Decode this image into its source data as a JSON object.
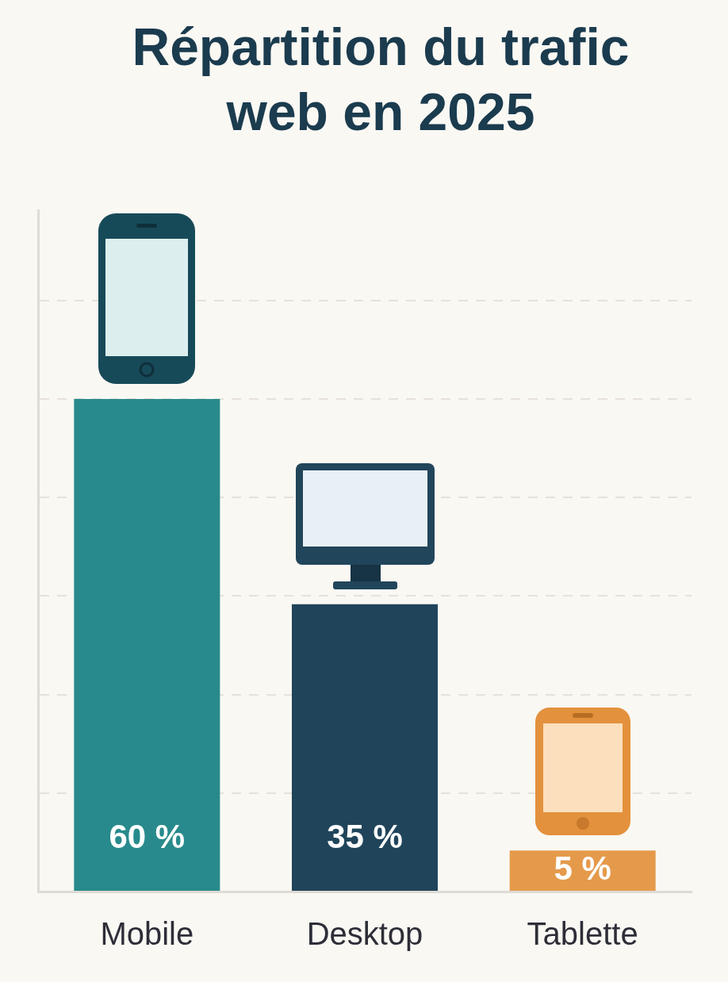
{
  "chart_data": {
    "type": "bar",
    "title": "Répartition du trafic web en 2025",
    "categories": [
      "Mobile",
      "Desktop",
      "Tablette"
    ],
    "values": [
      60,
      35,
      5
    ],
    "colors": [
      "#288a8c",
      "#20445a",
      "#e59a4b"
    ],
    "value_labels": [
      "60 %",
      "35 %",
      "5 %"
    ],
    "ylim": [
      0,
      83
    ],
    "yticks": [
      {
        "value": 0,
        "label": null
      },
      {
        "value": 12,
        "label": null
      },
      {
        "value": 24,
        "label": null
      },
      {
        "value": 36,
        "label": null
      },
      {
        "value": 48,
        "label": null
      },
      {
        "value": 60,
        "label": null
      },
      {
        "value": 72,
        "label": null
      }
    ],
    "grid": "y",
    "tick_labels": "x",
    "legend": false
  }
}
